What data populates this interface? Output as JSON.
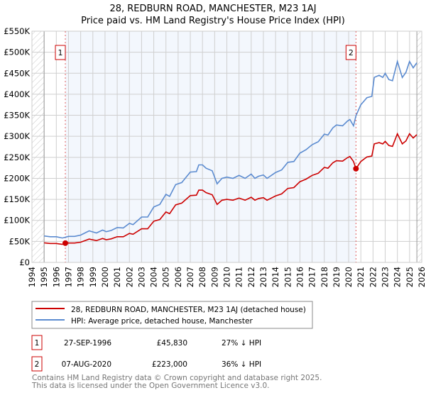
{
  "chart_data": {
    "type": "line",
    "title": "28, REDBURN ROAD, MANCHESTER, M23 1AJ",
    "subtitle": "Price paid vs. HM Land Registry's House Price Index (HPI)",
    "xlim": [
      1994,
      2026
    ],
    "ylim": [
      0,
      550000
    ],
    "x_ticks": [
      "1994",
      "1995",
      "1996",
      "1997",
      "1998",
      "1999",
      "2000",
      "2001",
      "2002",
      "2003",
      "2004",
      "2005",
      "2006",
      "2007",
      "2008",
      "2009",
      "2010",
      "2011",
      "2012",
      "2013",
      "2014",
      "2015",
      "2016",
      "2017",
      "2018",
      "2019",
      "2020",
      "2021",
      "2022",
      "2023",
      "2024",
      "2025",
      "2026"
    ],
    "y_ticks": [
      {
        "v": 0,
        "label": "£0"
      },
      {
        "v": 50000,
        "label": "£50K"
      },
      {
        "v": 100000,
        "label": "£100K"
      },
      {
        "v": 150000,
        "label": "£150K"
      },
      {
        "v": 200000,
        "label": "£200K"
      },
      {
        "v": 250000,
        "label": "£250K"
      },
      {
        "v": 300000,
        "label": "£300K"
      },
      {
        "v": 350000,
        "label": "£350K"
      },
      {
        "v": 400000,
        "label": "£400K"
      },
      {
        "v": 450000,
        "label": "£450K"
      },
      {
        "v": 500000,
        "label": "£500K"
      },
      {
        "v": 550000,
        "label": "£550K"
      }
    ],
    "grid": true,
    "data_range": [
      1995,
      2025.6
    ],
    "shaded_range": [
      1996.74,
      2020.6
    ],
    "series": [
      {
        "name": "28, REDBURN ROAD, MANCHESTER, M23 1AJ (detached house)",
        "color": "#cc0000",
        "points": [
          [
            1995,
            46600
          ],
          [
            1995.5,
            45000
          ],
          [
            1996,
            45000
          ],
          [
            1996.5,
            43000
          ],
          [
            1996.74,
            45830
          ],
          [
            1997,
            46000
          ],
          [
            1997.5,
            46000
          ],
          [
            1998,
            48000
          ],
          [
            1998.7,
            55500
          ],
          [
            1999.3,
            52000
          ],
          [
            1999.8,
            57000
          ],
          [
            2000.1,
            54000
          ],
          [
            2000.5,
            56000
          ],
          [
            2001,
            61000
          ],
          [
            2001.5,
            61000
          ],
          [
            2002,
            69000
          ],
          [
            2002.3,
            67000
          ],
          [
            2003,
            80000
          ],
          [
            2003.5,
            80000
          ],
          [
            2004,
            98000
          ],
          [
            2004.5,
            102000
          ],
          [
            2005,
            120000
          ],
          [
            2005.3,
            116000
          ],
          [
            2005.8,
            137000
          ],
          [
            2006.3,
            141000
          ],
          [
            2007,
            159000
          ],
          [
            2007.5,
            160000
          ],
          [
            2007.7,
            172000
          ],
          [
            2008,
            172000
          ],
          [
            2008.3,
            166000
          ],
          [
            2008.8,
            161000
          ],
          [
            2009.2,
            138000
          ],
          [
            2009.6,
            148000
          ],
          [
            2010,
            150000
          ],
          [
            2010.5,
            148000
          ],
          [
            2011,
            153000
          ],
          [
            2011.5,
            148000
          ],
          [
            2012,
            155000
          ],
          [
            2012.3,
            148000
          ],
          [
            2012.6,
            152000
          ],
          [
            2013,
            154000
          ],
          [
            2013.3,
            148000
          ],
          [
            2014,
            158000
          ],
          [
            2014.5,
            163000
          ],
          [
            2015,
            176000
          ],
          [
            2015.5,
            178000
          ],
          [
            2016,
            192000
          ],
          [
            2016.5,
            198000
          ],
          [
            2017,
            207000
          ],
          [
            2017.5,
            212000
          ],
          [
            2018,
            226000
          ],
          [
            2018.3,
            224000
          ],
          [
            2018.7,
            237000
          ],
          [
            2019,
            242000
          ],
          [
            2019.5,
            241000
          ],
          [
            2019.9,
            249000
          ],
          [
            2020.1,
            252000
          ],
          [
            2020.4,
            240000
          ],
          [
            2020.6,
            223000
          ],
          [
            2021,
            240000
          ],
          [
            2021.5,
            251000
          ],
          [
            2021.9,
            253000
          ],
          [
            2022.1,
            282000
          ],
          [
            2022.5,
            285000
          ],
          [
            2022.8,
            282000
          ],
          [
            2023,
            288000
          ],
          [
            2023.3,
            278000
          ],
          [
            2023.6,
            276000
          ],
          [
            2024,
            306000
          ],
          [
            2024.4,
            282000
          ],
          [
            2024.7,
            289000
          ],
          [
            2025,
            306000
          ],
          [
            2025.3,
            296000
          ],
          [
            2025.6,
            304000
          ]
        ]
      },
      {
        "name": "HPI: Average price, detached house, Manchester",
        "color": "#5b8bd0",
        "points": [
          [
            1995,
            63000
          ],
          [
            1995.5,
            61000
          ],
          [
            1996,
            61000
          ],
          [
            1996.5,
            58000
          ],
          [
            1997,
            62000
          ],
          [
            1997.5,
            62000
          ],
          [
            1998,
            65000
          ],
          [
            1998.7,
            75000
          ],
          [
            1999.3,
            70000
          ],
          [
            1999.8,
            77000
          ],
          [
            2000.1,
            73000
          ],
          [
            2000.5,
            76000
          ],
          [
            2001,
            83000
          ],
          [
            2001.5,
            82000
          ],
          [
            2002,
            93000
          ],
          [
            2002.3,
            90000
          ],
          [
            2003,
            108000
          ],
          [
            2003.5,
            108000
          ],
          [
            2004,
            132000
          ],
          [
            2004.5,
            138000
          ],
          [
            2005,
            162000
          ],
          [
            2005.3,
            157000
          ],
          [
            2005.8,
            185000
          ],
          [
            2006.3,
            190000
          ],
          [
            2007,
            215000
          ],
          [
            2007.5,
            216000
          ],
          [
            2007.7,
            232000
          ],
          [
            2008,
            232000
          ],
          [
            2008.3,
            224000
          ],
          [
            2008.8,
            218000
          ],
          [
            2009.2,
            187000
          ],
          [
            2009.6,
            200000
          ],
          [
            2010,
            203000
          ],
          [
            2010.5,
            200000
          ],
          [
            2011,
            207000
          ],
          [
            2011.5,
            200000
          ],
          [
            2012,
            210000
          ],
          [
            2012.3,
            200000
          ],
          [
            2012.6,
            205000
          ],
          [
            2013,
            208000
          ],
          [
            2013.3,
            200000
          ],
          [
            2014,
            214000
          ],
          [
            2014.5,
            220000
          ],
          [
            2015,
            238000
          ],
          [
            2015.5,
            240000
          ],
          [
            2016,
            260000
          ],
          [
            2016.5,
            268000
          ],
          [
            2017,
            280000
          ],
          [
            2017.5,
            287000
          ],
          [
            2018,
            305000
          ],
          [
            2018.3,
            303000
          ],
          [
            2018.7,
            320000
          ],
          [
            2019,
            327000
          ],
          [
            2019.5,
            325000
          ],
          [
            2019.9,
            336000
          ],
          [
            2020.1,
            340000
          ],
          [
            2020.4,
            325000
          ],
          [
            2020.6,
            349000
          ],
          [
            2021,
            375000
          ],
          [
            2021.5,
            392000
          ],
          [
            2021.9,
            395000
          ],
          [
            2022.1,
            440000
          ],
          [
            2022.5,
            445000
          ],
          [
            2022.8,
            440000
          ],
          [
            2023,
            450000
          ],
          [
            2023.3,
            435000
          ],
          [
            2023.6,
            432000
          ],
          [
            2024,
            478000
          ],
          [
            2024.4,
            440000
          ],
          [
            2024.7,
            452000
          ],
          [
            2025,
            478000
          ],
          [
            2025.3,
            463000
          ],
          [
            2025.6,
            475000
          ]
        ]
      }
    ],
    "sales": [
      {
        "marker": "1",
        "x": 1996.74,
        "value": 45830,
        "date": "27-SEP-1996",
        "price": "£45,830",
        "hpi_diff": "27% ↓ HPI"
      },
      {
        "marker": "2",
        "x": 2020.6,
        "value": 223000,
        "date": "07-AUG-2020",
        "price": "£223,000",
        "hpi_diff": "36% ↓ HPI"
      }
    ],
    "legend_placement": "below"
  },
  "footer": {
    "line1": "Contains HM Land Registry data © Crown copyright and database right 2025.",
    "line2": "This data is licensed under the Open Government Licence v3.0."
  }
}
